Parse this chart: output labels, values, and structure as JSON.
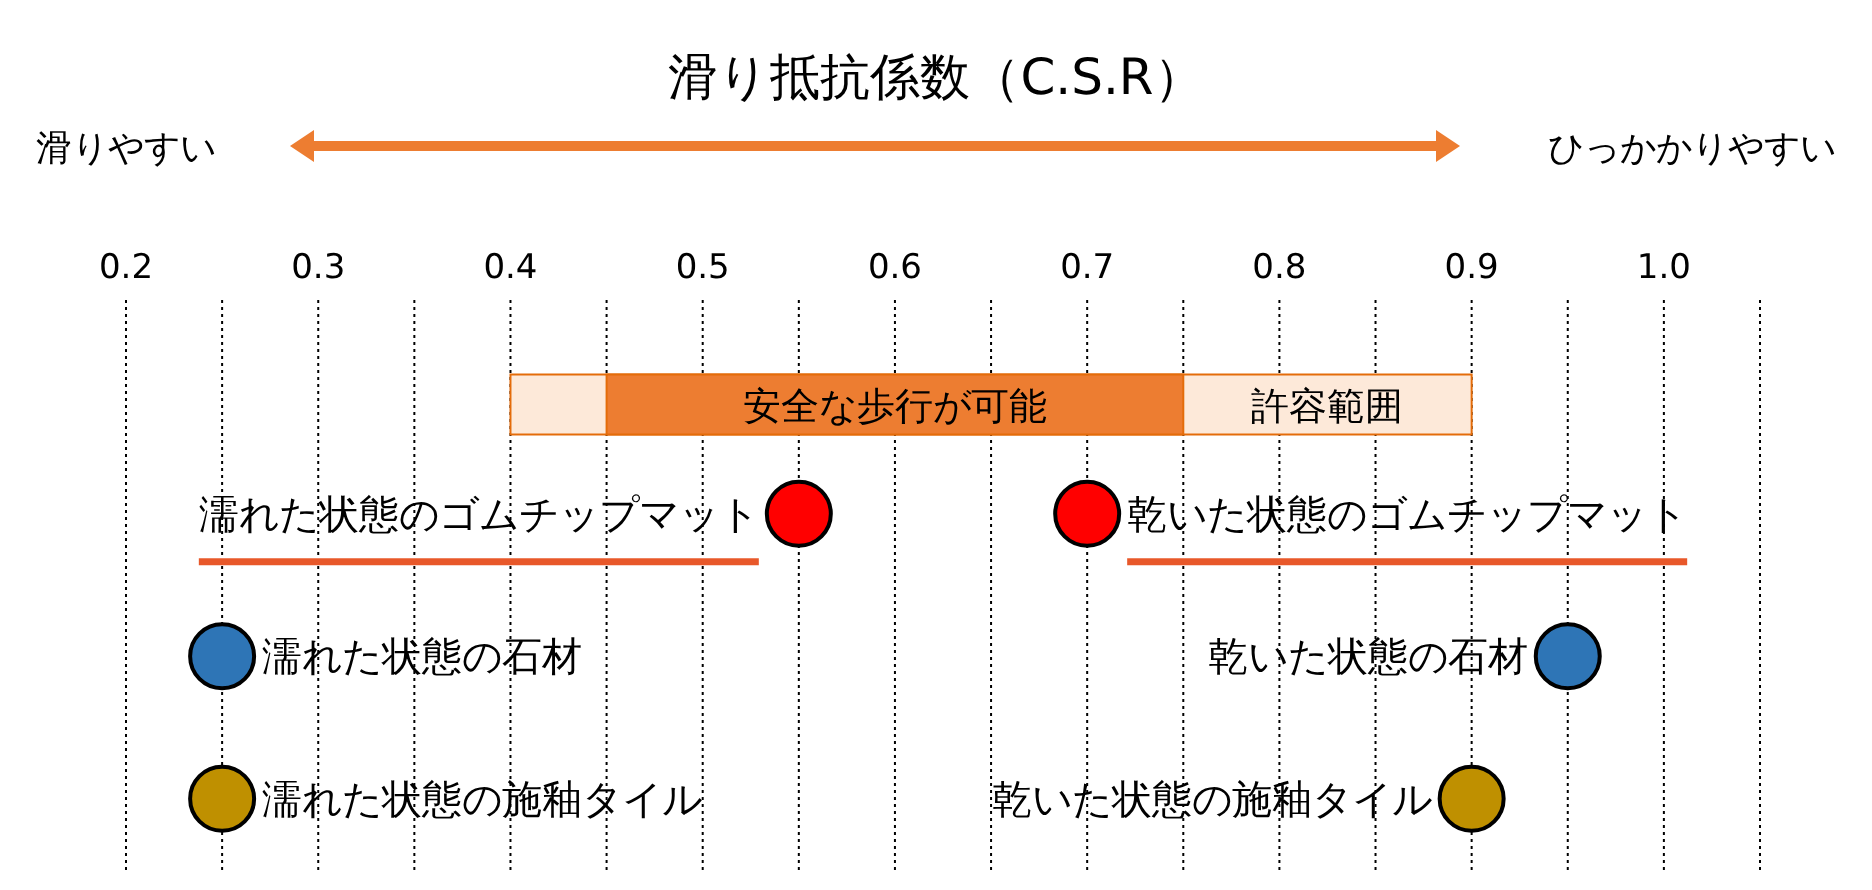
{
  "chart_data": {
    "type": "scatter",
    "orientation": "horizontal",
    "title": "滑り抵抗係数（C.S.R）",
    "categories": [
      null,
      null,
      null,
      null
    ],
    "xlim": [
      0.2,
      1.05
    ],
    "xticks": [
      {
        "value": 0.2,
        "label": "0.2"
      },
      {
        "value": 0.25,
        "label": null
      },
      {
        "value": 0.3,
        "label": "0.3"
      },
      {
        "value": 0.35,
        "label": null
      },
      {
        "value": 0.4,
        "label": "0.4"
      },
      {
        "value": 0.45,
        "label": null
      },
      {
        "value": 0.5,
        "label": "0.5"
      },
      {
        "value": 0.55,
        "label": null
      },
      {
        "value": 0.6,
        "label": "0.6"
      },
      {
        "value": 0.65,
        "label": null
      },
      {
        "value": 0.7,
        "label": "0.7"
      },
      {
        "value": 0.75,
        "label": null
      },
      {
        "value": 0.8,
        "label": "0.8"
      },
      {
        "value": 0.85,
        "label": null
      },
      {
        "value": 0.9,
        "label": "0.9"
      },
      {
        "value": 0.95,
        "label": null
      },
      {
        "value": 1.0,
        "label": "1.0"
      },
      {
        "value": 1.05,
        "label": null
      }
    ],
    "grid": "x",
    "marker": "circle",
    "bands": [
      {
        "axis": "x",
        "from": 0.4,
        "to": 0.9,
        "label": "許容範囲",
        "color": "#fde9d9"
      },
      {
        "axis": "x",
        "from": 0.45,
        "to": 0.75,
        "label": "安全な歩行が可能",
        "color": "#ed7d31"
      }
    ],
    "annotations": [
      "滑りやすい",
      "ひっかかりやすい"
    ],
    "series": [
      {
        "name": "濡れた状態のゴムチップマット",
        "color": "#ff0000",
        "values": [
          null,
          0.55,
          null,
          null
        ]
      },
      {
        "name": "乾いた状態のゴムチップマット",
        "color": "#ff0000",
        "values": [
          null,
          0.7,
          null,
          null
        ]
      },
      {
        "name": "濡れた状態の石材",
        "color": "#2e75b6",
        "values": [
          null,
          null,
          0.25,
          null
        ]
      },
      {
        "name": "乾いた状態の石材",
        "color": "#2e75b6",
        "values": [
          null,
          null,
          0.95,
          null
        ]
      },
      {
        "name": "濡れた状態の施釉タイル",
        "color": "#bf9000",
        "values": [
          null,
          null,
          null,
          0.25
        ]
      },
      {
        "name": "乾いた状態の施釉タイル",
        "color": "#bf9000",
        "values": [
          null,
          null,
          null,
          0.9
        ]
      }
    ]
  }
}
